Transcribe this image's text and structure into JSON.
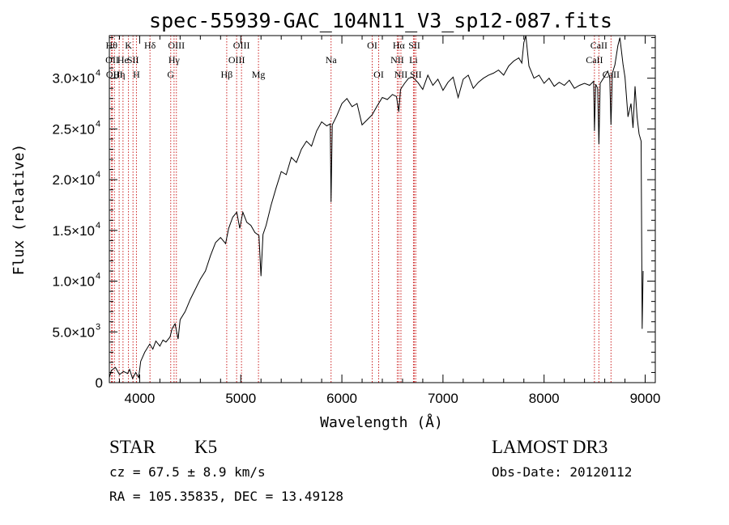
{
  "chart_data": {
    "type": "line",
    "title": "spec-55939-GAC_104N11_V3_sp12-087.fits",
    "xlabel": "Wavelength (Å)",
    "ylabel": "Flux (relative)",
    "xlim": [
      3700,
      9100
    ],
    "ylim": [
      0,
      34200
    ],
    "x_ticks": [
      {
        "value": 4000,
        "label": "4000"
      },
      {
        "value": 5000,
        "label": "5000"
      },
      {
        "value": 6000,
        "label": "6000"
      },
      {
        "value": 7000,
        "label": "7000"
      },
      {
        "value": 8000,
        "label": "8000"
      },
      {
        "value": 9000,
        "label": "9000"
      }
    ],
    "y_ticks": [
      {
        "value": 0,
        "mantissa": "0",
        "exponent": ""
      },
      {
        "value": 5000,
        "mantissa": "5.0×10",
        "exponent": "3"
      },
      {
        "value": 10000,
        "mantissa": "1.0×10",
        "exponent": "4"
      },
      {
        "value": 15000,
        "mantissa": "1.5×10",
        "exponent": "4"
      },
      {
        "value": 20000,
        "mantissa": "2.0×10",
        "exponent": "4"
      },
      {
        "value": 25000,
        "mantissa": "2.5×10",
        "exponent": "4"
      },
      {
        "value": 30000,
        "mantissa": "3.0×10",
        "exponent": "4"
      }
    ],
    "series": [
      {
        "name": "spectrum",
        "points": [
          [
            3700,
            500
          ],
          [
            3720,
            1200
          ],
          [
            3760,
            1500
          ],
          [
            3800,
            800
          ],
          [
            3840,
            1100
          ],
          [
            3880,
            900
          ],
          [
            3900,
            1300
          ],
          [
            3930,
            400
          ],
          [
            3960,
            1000
          ],
          [
            3990,
            500
          ],
          [
            4010,
            2100
          ],
          [
            4050,
            3000
          ],
          [
            4100,
            3800
          ],
          [
            4130,
            3300
          ],
          [
            4160,
            4100
          ],
          [
            4200,
            3600
          ],
          [
            4230,
            4200
          ],
          [
            4260,
            4000
          ],
          [
            4300,
            4500
          ],
          [
            4320,
            5300
          ],
          [
            4350,
            5800
          ],
          [
            4380,
            4300
          ],
          [
            4400,
            6200
          ],
          [
            4450,
            7000
          ],
          [
            4500,
            8200
          ],
          [
            4550,
            9200
          ],
          [
            4600,
            10200
          ],
          [
            4650,
            11000
          ],
          [
            4700,
            12500
          ],
          [
            4750,
            13800
          ],
          [
            4800,
            14300
          ],
          [
            4850,
            13700
          ],
          [
            4880,
            15200
          ],
          [
            4920,
            16300
          ],
          [
            4960,
            16800
          ],
          [
            4990,
            15200
          ],
          [
            5020,
            16800
          ],
          [
            5060,
            15800
          ],
          [
            5100,
            15500
          ],
          [
            5140,
            14800
          ],
          [
            5180,
            14500
          ],
          [
            5200,
            10500
          ],
          [
            5220,
            14600
          ],
          [
            5250,
            15500
          ],
          [
            5300,
            17500
          ],
          [
            5350,
            19200
          ],
          [
            5400,
            20800
          ],
          [
            5450,
            20500
          ],
          [
            5500,
            22200
          ],
          [
            5550,
            21700
          ],
          [
            5600,
            23000
          ],
          [
            5650,
            23800
          ],
          [
            5700,
            23300
          ],
          [
            5750,
            24800
          ],
          [
            5800,
            25700
          ],
          [
            5850,
            25300
          ],
          [
            5885,
            25500
          ],
          [
            5893,
            17800
          ],
          [
            5905,
            25400
          ],
          [
            5950,
            26300
          ],
          [
            6000,
            27500
          ],
          [
            6050,
            28000
          ],
          [
            6100,
            27200
          ],
          [
            6150,
            27500
          ],
          [
            6200,
            25400
          ],
          [
            6250,
            25900
          ],
          [
            6300,
            26400
          ],
          [
            6350,
            27300
          ],
          [
            6400,
            28100
          ],
          [
            6450,
            27900
          ],
          [
            6500,
            28400
          ],
          [
            6540,
            28200
          ],
          [
            6563,
            26700
          ],
          [
            6580,
            28900
          ],
          [
            6620,
            29500
          ],
          [
            6660,
            30000
          ],
          [
            6700,
            30100
          ],
          [
            6750,
            29600
          ],
          [
            6800,
            28900
          ],
          [
            6850,
            30300
          ],
          [
            6900,
            29300
          ],
          [
            6950,
            29900
          ],
          [
            7000,
            28800
          ],
          [
            7050,
            29600
          ],
          [
            7100,
            30100
          ],
          [
            7150,
            28100
          ],
          [
            7200,
            29900
          ],
          [
            7250,
            30300
          ],
          [
            7300,
            29000
          ],
          [
            7350,
            29600
          ],
          [
            7400,
            30000
          ],
          [
            7450,
            30300
          ],
          [
            7500,
            30500
          ],
          [
            7550,
            30800
          ],
          [
            7600,
            30300
          ],
          [
            7650,
            31200
          ],
          [
            7700,
            31700
          ],
          [
            7750,
            32000
          ],
          [
            7780,
            31500
          ],
          [
            7800,
            33500
          ],
          [
            7820,
            34200
          ],
          [
            7850,
            31200
          ],
          [
            7880,
            30500
          ],
          [
            7900,
            30000
          ],
          [
            7950,
            30300
          ],
          [
            8000,
            29500
          ],
          [
            8050,
            30000
          ],
          [
            8100,
            29200
          ],
          [
            8150,
            29600
          ],
          [
            8200,
            29300
          ],
          [
            8250,
            29800
          ],
          [
            8300,
            29000
          ],
          [
            8350,
            29300
          ],
          [
            8400,
            29500
          ],
          [
            8450,
            29300
          ],
          [
            8490,
            29700
          ],
          [
            8498,
            24800
          ],
          [
            8510,
            29400
          ],
          [
            8530,
            29000
          ],
          [
            8542,
            23500
          ],
          [
            8555,
            29500
          ],
          [
            8600,
            30200
          ],
          [
            8630,
            30700
          ],
          [
            8650,
            30000
          ],
          [
            8662,
            25400
          ],
          [
            8675,
            30500
          ],
          [
            8700,
            31300
          ],
          [
            8730,
            33200
          ],
          [
            8750,
            34000
          ],
          [
            8780,
            31400
          ],
          [
            8800,
            30100
          ],
          [
            8830,
            26200
          ],
          [
            8860,
            27500
          ],
          [
            8880,
            25100
          ],
          [
            8900,
            29200
          ],
          [
            8920,
            26200
          ],
          [
            8940,
            24500
          ],
          [
            8960,
            23800
          ],
          [
            8970,
            5300
          ],
          [
            8980,
            11000
          ]
        ]
      }
    ],
    "lines": [
      {
        "wl": 3722,
        "label": "Hθ",
        "row": 1
      },
      {
        "wl": 3728,
        "label": "OII",
        "row": 2
      },
      {
        "wl": 3750,
        "label": "OIII",
        "row": 3
      },
      {
        "wl": 3797,
        "label": "Hη",
        "row": 3
      },
      {
        "wl": 3835,
        "label": "He",
        "row": 2
      },
      {
        "wl": 3889,
        "label": "K",
        "row": 1
      },
      {
        "wl": 3934,
        "label": "SII",
        "row": 2
      },
      {
        "wl": 3968,
        "label": "H",
        "row": 3
      },
      {
        "wl": 4102,
        "label": "Hδ",
        "row": 1
      },
      {
        "wl": 4307,
        "label": "G",
        "row": 3
      },
      {
        "wl": 4340,
        "label": "Hγ",
        "row": 2
      },
      {
        "wl": 4363,
        "label": "OIII",
        "row": 1
      },
      {
        "wl": 4861,
        "label": "Hβ",
        "row": 3
      },
      {
        "wl": 4959,
        "label": "OIII",
        "row": 2
      },
      {
        "wl": 5007,
        "label": "OIII",
        "row": 1
      },
      {
        "wl": 5175,
        "label": "Mg",
        "row": 3
      },
      {
        "wl": 5893,
        "label": "Na",
        "row": 2
      },
      {
        "wl": 6300,
        "label": "OI",
        "row": 1
      },
      {
        "wl": 6364,
        "label": "OI",
        "row": 3
      },
      {
        "wl": 6548,
        "label": "NII",
        "row": 2
      },
      {
        "wl": 6563,
        "label": "Hα",
        "row": 1
      },
      {
        "wl": 6584,
        "label": "NII",
        "row": 3
      },
      {
        "wl": 6708,
        "label": "Li",
        "row": 2
      },
      {
        "wl": 6717,
        "label": "SII",
        "row": 1
      },
      {
        "wl": 6731,
        "label": "SII",
        "row": 3
      },
      {
        "wl": 8498,
        "label": "CaII",
        "row": 2
      },
      {
        "wl": 8542,
        "label": "CaII",
        "row": 1
      },
      {
        "wl": 8662,
        "label": "CaII",
        "row": 3
      }
    ],
    "colors": {
      "spectrum": "#000000",
      "lines": "#cc2222"
    }
  },
  "info": {
    "class_label": "STAR",
    "subclass": "K5",
    "survey": "LAMOST DR3",
    "cz_text": "cz = 67.5 ± 8.9 km/s",
    "obs_date": "Obs-Date: 20120112",
    "coords": "RA = 105.35835, DEC =  13.49128"
  }
}
